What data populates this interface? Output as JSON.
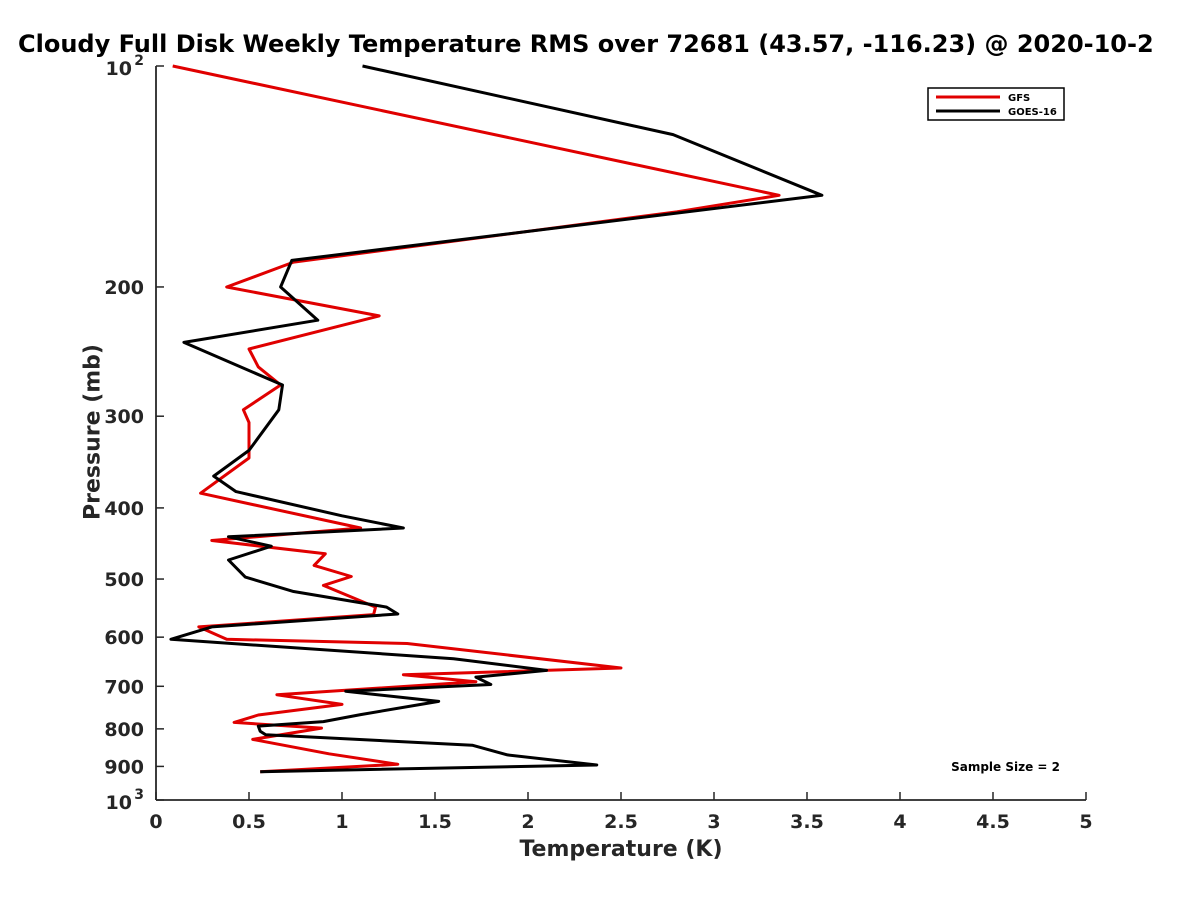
{
  "chart_data": {
    "type": "line",
    "title": "Cloudy Full Disk Weekly Temperature RMS over 72681 (43.57, -116.23) @ 2020-10-2",
    "xlabel": "Temperature (K)",
    "ylabel": "Pressure (mb)",
    "xlim": [
      0,
      5
    ],
    "ylim": [
      100,
      1000
    ],
    "y_scale": "log",
    "y_reversed": true,
    "grid": false,
    "legend_position": "top-right",
    "x_ticks": [
      "0",
      "0.5",
      "1",
      "1.5",
      "2",
      "2.5",
      "3",
      "3.5",
      "4",
      "4.5",
      "5"
    ],
    "y_ticks": [
      {
        "value": 100,
        "base": "10",
        "exp": "2"
      },
      {
        "value": 200,
        "label": "200"
      },
      {
        "value": 300,
        "label": "300"
      },
      {
        "value": 400,
        "label": "400"
      },
      {
        "value": 500,
        "label": "500"
      },
      {
        "value": 600,
        "label": "600"
      },
      {
        "value": 700,
        "label": "700"
      },
      {
        "value": 800,
        "label": "800"
      },
      {
        "value": 900,
        "label": "900"
      },
      {
        "value": 1000,
        "base": "10",
        "exp": "3"
      }
    ],
    "series": [
      {
        "name": "GFS",
        "color": "#e00000",
        "points": [
          [
            0.09,
            100
          ],
          [
            3.35,
            150
          ],
          [
            2.8,
            158
          ],
          [
            0.74,
            185
          ],
          [
            0.38,
            200
          ],
          [
            1.2,
            219
          ],
          [
            0.5,
            243
          ],
          [
            0.55,
            257
          ],
          [
            0.67,
            272
          ],
          [
            0.47,
            294
          ],
          [
            0.5,
            306
          ],
          [
            0.5,
            342
          ],
          [
            0.24,
            382
          ],
          [
            1.1,
            426
          ],
          [
            0.3,
            443
          ],
          [
            0.91,
            462
          ],
          [
            0.85,
            479
          ],
          [
            1.05,
            496
          ],
          [
            0.9,
            510
          ],
          [
            1.18,
            546
          ],
          [
            1.17,
            559
          ],
          [
            0.23,
            581
          ],
          [
            0.38,
            604
          ],
          [
            1.35,
            612
          ],
          [
            2.5,
            661
          ],
          [
            1.33,
            675
          ],
          [
            1.72,
            690
          ],
          [
            0.65,
            719
          ],
          [
            1.0,
            741
          ],
          [
            0.55,
            766
          ],
          [
            0.42,
            784
          ],
          [
            0.89,
            798
          ],
          [
            0.52,
            827
          ],
          [
            0.93,
            865
          ],
          [
            1.3,
            894
          ],
          [
            0.56,
            915
          ]
        ]
      },
      {
        "name": "GOES-16",
        "color": "#000000",
        "points": [
          [
            1.11,
            100
          ],
          [
            2.78,
            124
          ],
          [
            3.58,
            150
          ],
          [
            0.73,
            184
          ],
          [
            0.67,
            200
          ],
          [
            0.87,
            222
          ],
          [
            0.15,
            238
          ],
          [
            0.68,
            272
          ],
          [
            0.66,
            294
          ],
          [
            0.5,
            334
          ],
          [
            0.31,
            362
          ],
          [
            0.43,
            380
          ],
          [
            1.0,
            410
          ],
          [
            1.33,
            426
          ],
          [
            0.39,
            438
          ],
          [
            0.62,
            451
          ],
          [
            0.39,
            471
          ],
          [
            0.48,
            497
          ],
          [
            0.74,
            520
          ],
          [
            1.24,
            546
          ],
          [
            1.3,
            558
          ],
          [
            0.3,
            581
          ],
          [
            0.08,
            604
          ],
          [
            1.6,
            642
          ],
          [
            2.1,
            666
          ],
          [
            1.72,
            680
          ],
          [
            1.8,
            696
          ],
          [
            1.02,
            711
          ],
          [
            1.52,
            734
          ],
          [
            1.1,
            765
          ],
          [
            0.9,
            782
          ],
          [
            0.55,
            793
          ],
          [
            0.56,
            806
          ],
          [
            0.59,
            815
          ],
          [
            1.7,
            842
          ],
          [
            1.89,
            868
          ],
          [
            2.37,
            896
          ],
          [
            0.56,
            915
          ]
        ]
      }
    ],
    "annotation": "Sample Size = 2"
  }
}
